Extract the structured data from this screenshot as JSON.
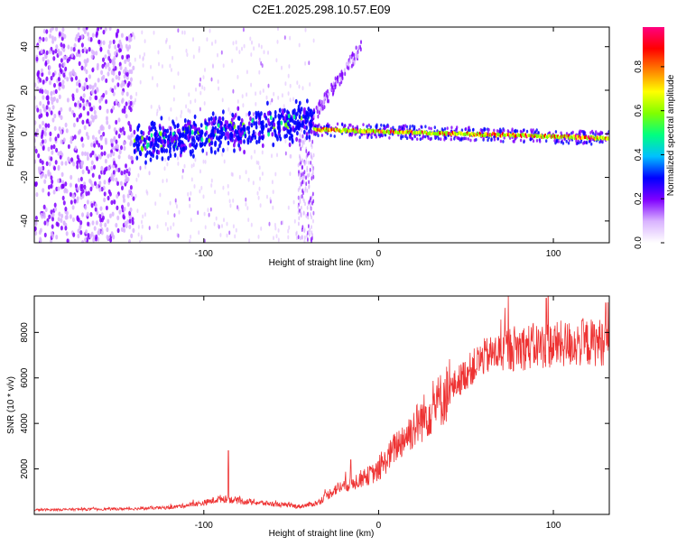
{
  "title": "C2E1.2025.298.10.57.E09",
  "chart_data": [
    {
      "type": "heatmap",
      "name": "spectrogram",
      "xlabel": "Height of straight line (km)",
      "ylabel": "Frequency (Hz)",
      "xlim": [
        -197,
        132
      ],
      "ylim": [
        -50,
        49
      ],
      "xticks": [
        -100,
        0,
        100
      ],
      "yticks": [
        -40,
        -20,
        0,
        20,
        40
      ],
      "colorbar": {
        "label": "Normalized spectral amplitude",
        "range": [
          0.0,
          0.98
        ],
        "ticks": [
          0.0,
          0.2,
          0.4,
          0.6,
          0.8
        ],
        "tick_labels": [
          "0.0",
          "0.2",
          "0.4",
          "0.6",
          "0.8"
        ],
        "colors": [
          "#ffffff",
          "#d9b3ff",
          "#8000ff",
          "#0000ff",
          "#00c0ff",
          "#00ff80",
          "#80ff00",
          "#ffff00",
          "#ff8000",
          "#ff0000",
          "#ff0080"
        ]
      },
      "features": [
        {
          "name": "broadband noise",
          "x_range": [
            -197,
            -140
          ],
          "freq_range": [
            -50,
            49
          ],
          "amplitude": 0.15
        },
        {
          "name": "sparse noise",
          "x_range": [
            -140,
            -37
          ],
          "freq_range": [
            -50,
            49
          ],
          "amplitude": 0.05
        },
        {
          "name": "noise column",
          "x_range": [
            -46,
            -37
          ],
          "freq_range": [
            -50,
            10
          ],
          "amplitude": 0.08
        },
        {
          "name": "signal band",
          "x_range": [
            -140,
            -37
          ],
          "center_freq_start": -4,
          "center_freq_end": 6,
          "amplitude": 0.3
        },
        {
          "name": "rising tone",
          "x_range": [
            -37,
            -10
          ],
          "freq_start": 8,
          "freq_end": 40,
          "amplitude": 0.1
        },
        {
          "name": "signal line",
          "x_range": [
            -37,
            132
          ],
          "freq_start": 2,
          "freq_end": -2,
          "amplitude": 0.7
        }
      ]
    },
    {
      "type": "line",
      "name": "snr",
      "xlabel": "Height of straight line (km)",
      "ylabel": "SNR (10 * v/v)",
      "xlim": [
        -197,
        132
      ],
      "ylim": [
        0,
        9600
      ],
      "xticks": [
        -100,
        0,
        100
      ],
      "yticks": [
        2000,
        4000,
        6000,
        8000
      ],
      "color": "#ee3333",
      "baseline_trend": [
        {
          "x": -197,
          "y": 200
        },
        {
          "x": -140,
          "y": 250
        },
        {
          "x": -120,
          "y": 300
        },
        {
          "x": -100,
          "y": 500
        },
        {
          "x": -90,
          "y": 700
        },
        {
          "x": -80,
          "y": 600
        },
        {
          "x": -60,
          "y": 450
        },
        {
          "x": -45,
          "y": 350
        },
        {
          "x": -35,
          "y": 500
        },
        {
          "x": -25,
          "y": 1100
        },
        {
          "x": -12,
          "y": 1500
        },
        {
          "x": 0,
          "y": 1900
        },
        {
          "x": 10,
          "y": 3000
        },
        {
          "x": 20,
          "y": 3800
        },
        {
          "x": 30,
          "y": 4600
        },
        {
          "x": 40,
          "y": 5400
        },
        {
          "x": 50,
          "y": 6200
        },
        {
          "x": 60,
          "y": 6900
        },
        {
          "x": 75,
          "y": 7300
        },
        {
          "x": 90,
          "y": 7400
        },
        {
          "x": 110,
          "y": 7500
        },
        {
          "x": 132,
          "y": 7600
        }
      ],
      "peaks": [
        {
          "x": -86,
          "y": 2800
        },
        {
          "x": -16,
          "y": 2400
        },
        {
          "x": 96,
          "y": 9500
        },
        {
          "x": 130,
          "y": 9300
        }
      ]
    }
  ]
}
